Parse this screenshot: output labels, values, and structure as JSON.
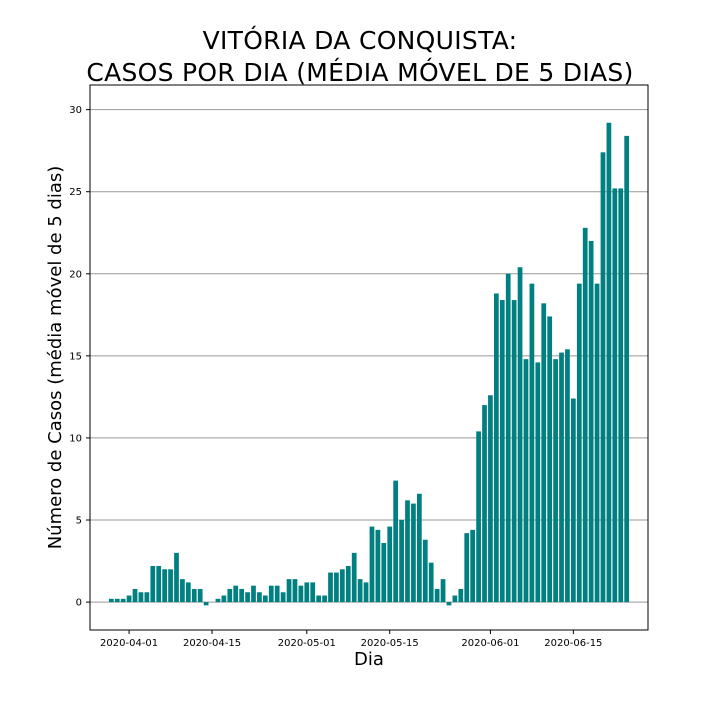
{
  "chart_data": {
    "type": "bar",
    "title_lines": [
      "VITÓRIA DA CONQUISTA:",
      "CASOS POR DIA (MÉDIA MÓVEL DE 5 DIAS)"
    ],
    "xlabel": "Dia",
    "ylabel": "Número de Casos (média móvel de 5 dias)",
    "ylim": [
      -1.7,
      31.5
    ],
    "yticks": [
      0,
      5,
      10,
      15,
      20,
      25,
      30
    ],
    "grid": "horizontal",
    "bar_color": "#008080",
    "x_start": "2020-03-29",
    "x_end": "2020-06-24",
    "xticks": [
      "2020-04-01",
      "2020-04-15",
      "2020-05-01",
      "2020-05-15",
      "2020-06-01",
      "2020-06-15"
    ],
    "x": [
      "2020-03-29",
      "2020-03-30",
      "2020-03-31",
      "2020-04-01",
      "2020-04-02",
      "2020-04-03",
      "2020-04-04",
      "2020-04-05",
      "2020-04-06",
      "2020-04-07",
      "2020-04-08",
      "2020-04-09",
      "2020-04-10",
      "2020-04-11",
      "2020-04-12",
      "2020-04-13",
      "2020-04-14",
      "2020-04-15",
      "2020-04-16",
      "2020-04-17",
      "2020-04-18",
      "2020-04-19",
      "2020-04-20",
      "2020-04-21",
      "2020-04-22",
      "2020-04-23",
      "2020-04-24",
      "2020-04-25",
      "2020-04-26",
      "2020-04-27",
      "2020-04-28",
      "2020-04-29",
      "2020-04-30",
      "2020-05-01",
      "2020-05-02",
      "2020-05-03",
      "2020-05-04",
      "2020-05-05",
      "2020-05-06",
      "2020-05-07",
      "2020-05-08",
      "2020-05-09",
      "2020-05-10",
      "2020-05-11",
      "2020-05-12",
      "2020-05-13",
      "2020-05-14",
      "2020-05-15",
      "2020-05-16",
      "2020-05-17",
      "2020-05-18",
      "2020-05-19",
      "2020-05-20",
      "2020-05-21",
      "2020-05-22",
      "2020-05-23",
      "2020-05-24",
      "2020-05-25",
      "2020-05-26",
      "2020-05-27",
      "2020-05-28",
      "2020-05-29",
      "2020-05-30",
      "2020-05-31",
      "2020-06-01",
      "2020-06-02",
      "2020-06-03",
      "2020-06-04",
      "2020-06-05",
      "2020-06-06",
      "2020-06-07",
      "2020-06-08",
      "2020-06-09",
      "2020-06-10",
      "2020-06-11",
      "2020-06-12",
      "2020-06-13",
      "2020-06-14",
      "2020-06-15",
      "2020-06-16",
      "2020-06-17",
      "2020-06-18",
      "2020-06-19",
      "2020-06-20",
      "2020-06-21",
      "2020-06-22",
      "2020-06-23",
      "2020-06-24"
    ],
    "values": [
      0.2,
      0.2,
      0.2,
      0.4,
      0.8,
      0.6,
      0.6,
      2.2,
      2.2,
      2.0,
      2.0,
      3.0,
      1.4,
      1.2,
      0.8,
      0.8,
      -0.2,
      0.0,
      0.2,
      0.4,
      0.8,
      1.0,
      0.8,
      0.6,
      1.0,
      0.6,
      0.4,
      1.0,
      1.0,
      0.6,
      1.4,
      1.4,
      1.0,
      1.2,
      1.2,
      0.4,
      0.4,
      1.8,
      1.8,
      2.0,
      2.2,
      3.0,
      1.4,
      1.2,
      4.6,
      4.4,
      3.6,
      4.6,
      7.4,
      5.0,
      6.2,
      6.0,
      6.6,
      3.8,
      2.4,
      0.8,
      1.4,
      -0.2,
      0.4,
      0.8,
      4.2,
      4.4,
      10.4,
      12.0,
      12.6,
      18.8,
      18.4,
      20.0,
      18.4,
      20.4,
      14.8,
      19.4,
      14.6,
      18.2,
      17.4,
      14.8,
      15.2,
      15.4,
      12.4,
      19.4,
      22.8,
      22.0,
      19.4,
      27.4,
      29.2,
      25.2,
      25.2,
      28.4
    ]
  }
}
